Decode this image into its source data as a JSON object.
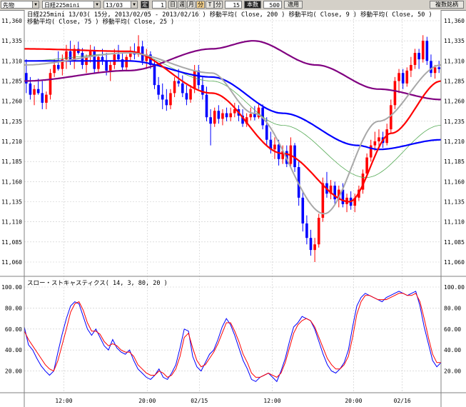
{
  "toolbar": {
    "product": "先物",
    "symbol": "日経225mini",
    "contract": "13/03",
    "fix_label": "定",
    "count_value": "1",
    "period_buttons": [
      "日",
      "週",
      "月",
      "分",
      "T"
    ],
    "active_period": "分",
    "unit_label": "分",
    "minutes_value": "15",
    "bars_label": "本数",
    "bars_value": "500",
    "apply_label": "適用",
    "compare_label": "複数銘柄"
  },
  "chart_data": [
    {
      "type": "candlestick",
      "info_line1": "日経225mini 13/03( 15分, 2013/02/05 - 2013/02/16 )   移動平均( Close, 200 )   移動平均( Close, 9 )   移動平均( Close, 50 )",
      "info_line2": "移動平均( Close, 75 )   移動平均( Close, 25 )",
      "ylim": [
        11060,
        11360
      ],
      "y_ticks": [
        11360,
        11335,
        11310,
        11285,
        11260,
        11235,
        11210,
        11185,
        11160,
        11135,
        11110,
        11085,
        11060
      ],
      "y_tick_labels": [
        "11,360",
        "11,335",
        "11,310",
        "11,285",
        "11,260",
        "11,235",
        "11,210",
        "11,185",
        "11,160",
        "11,135",
        "11,110",
        "11,085",
        "11,060"
      ],
      "colors": {
        "up": "#ff0000",
        "down": "#0000ff",
        "ma200": "#800080",
        "ma9": "#a8a8a8",
        "ma50": "#0000ff",
        "ma75": "#55aa55",
        "ma25": "#ff0000"
      },
      "candles": [
        [
          11295,
          11312,
          11270,
          11282
        ],
        [
          11282,
          11290,
          11262,
          11268
        ],
        [
          11268,
          11280,
          11255,
          11275
        ],
        [
          11275,
          11288,
          11268,
          11270
        ],
        [
          11270,
          11285,
          11250,
          11258
        ],
        [
          11258,
          11272,
          11250,
          11268
        ],
        [
          11268,
          11300,
          11262,
          11295
        ],
        [
          11295,
          11312,
          11290,
          11305
        ],
        [
          11305,
          11322,
          11298,
          11300
        ],
        [
          11300,
          11318,
          11292,
          11312
        ],
        [
          11312,
          11330,
          11300,
          11322
        ],
        [
          11322,
          11335,
          11305,
          11310
        ],
        [
          11310,
          11330,
          11300,
          11325
        ],
        [
          11325,
          11334,
          11318,
          11320
        ],
        [
          11320,
          11326,
          11300,
          11305
        ],
        [
          11305,
          11318,
          11295,
          11315
        ],
        [
          11315,
          11330,
          11308,
          11322
        ],
        [
          11322,
          11328,
          11295,
          11300
        ],
        [
          11300,
          11318,
          11295,
          11315
        ],
        [
          11315,
          11325,
          11305,
          11310
        ],
        [
          11310,
          11320,
          11292,
          11298
        ],
        [
          11298,
          11310,
          11285,
          11305
        ],
        [
          11305,
          11325,
          11300,
          11318
        ],
        [
          11318,
          11330,
          11310,
          11312
        ],
        [
          11312,
          11320,
          11298,
          11302
        ],
        [
          11302,
          11318,
          11298,
          11315
        ],
        [
          11315,
          11328,
          11310,
          11320
        ],
        [
          11320,
          11332,
          11312,
          11318
        ],
        [
          11318,
          11342,
          11315,
          11328
        ],
        [
          11328,
          11335,
          11305,
          11310
        ],
        [
          11310,
          11325,
          11300,
          11318
        ],
        [
          11318,
          11322,
          11300,
          11305
        ],
        [
          11305,
          11312,
          11275,
          11280
        ],
        [
          11280,
          11290,
          11262,
          11268
        ],
        [
          11268,
          11282,
          11250,
          11262
        ],
        [
          11262,
          11275,
          11248,
          11255
        ],
        [
          11255,
          11275,
          11250,
          11270
        ],
        [
          11270,
          11290,
          11265,
          11285
        ],
        [
          11285,
          11300,
          11278,
          11282
        ],
        [
          11282,
          11292,
          11265,
          11270
        ],
        [
          11270,
          11280,
          11255,
          11262
        ],
        [
          11262,
          11280,
          11258,
          11275
        ],
        [
          11275,
          11305,
          11270,
          11298
        ],
        [
          11298,
          11305,
          11275,
          11280
        ],
        [
          11280,
          11290,
          11262,
          11268
        ],
        [
          11268,
          11278,
          11235,
          11240
        ],
        [
          11240,
          11250,
          11205,
          11232
        ],
        [
          11232,
          11252,
          11228,
          11248
        ],
        [
          11248,
          11255,
          11232,
          11238
        ],
        [
          11238,
          11250,
          11230,
          11245
        ],
        [
          11245,
          11252,
          11235,
          11240
        ],
        [
          11240,
          11252,
          11235,
          11245
        ],
        [
          11245,
          11258,
          11240,
          11250
        ],
        [
          11250,
          11255,
          11235,
          11242
        ],
        [
          11242,
          11250,
          11228,
          11232
        ],
        [
          11232,
          11245,
          11228,
          11240
        ],
        [
          11240,
          11252,
          11236,
          11244
        ],
        [
          11244,
          11254,
          11236,
          11240
        ],
        [
          11240,
          11256,
          11238,
          11252
        ],
        [
          11252,
          11256,
          11225,
          11230
        ],
        [
          11230,
          11240,
          11205,
          11212
        ],
        [
          11212,
          11222,
          11195,
          11200
        ],
        [
          11200,
          11215,
          11188,
          11206
        ],
        [
          11206,
          11212,
          11180,
          11188
        ],
        [
          11188,
          11205,
          11182,
          11198
        ],
        [
          11198,
          11205,
          11178,
          11182
        ],
        [
          11182,
          11215,
          11178,
          11205
        ],
        [
          11205,
          11208,
          11172,
          11178
        ],
        [
          11178,
          11185,
          11130,
          11140
        ],
        [
          11140,
          11148,
          11098,
          11108
        ],
        [
          11108,
          11118,
          11082,
          11090
        ],
        [
          11090,
          11100,
          11068,
          11075
        ],
        [
          11075,
          11090,
          11060,
          11082
        ],
        [
          11082,
          11120,
          11078,
          11115
        ],
        [
          11115,
          11165,
          11110,
          11158
        ],
        [
          11158,
          11172,
          11140,
          11145
        ],
        [
          11145,
          11162,
          11138,
          11155
        ],
        [
          11155,
          11160,
          11132,
          11138
        ],
        [
          11138,
          11155,
          11128,
          11150
        ],
        [
          11150,
          11158,
          11128,
          11132
        ],
        [
          11132,
          11145,
          11122,
          11140
        ],
        [
          11140,
          11148,
          11125,
          11130
        ],
        [
          11130,
          11145,
          11122,
          11140
        ],
        [
          11140,
          11155,
          11136,
          11150
        ],
        [
          11150,
          11175,
          11145,
          11170
        ],
        [
          11170,
          11195,
          11165,
          11190
        ],
        [
          11190,
          11212,
          11185,
          11205
        ],
        [
          11205,
          11222,
          11198,
          11210
        ],
        [
          11210,
          11225,
          11200,
          11215
        ],
        [
          11215,
          11222,
          11202,
          11208
        ],
        [
          11208,
          11232,
          11205,
          11225
        ],
        [
          11225,
          11262,
          11220,
          11255
        ],
        [
          11255,
          11290,
          11250,
          11285
        ],
        [
          11285,
          11300,
          11270,
          11295
        ],
        [
          11295,
          11300,
          11275,
          11282
        ],
        [
          11282,
          11302,
          11278,
          11298
        ],
        [
          11298,
          11315,
          11290,
          11305
        ],
        [
          11305,
          11325,
          11300,
          11320
        ],
        [
          11320,
          11325,
          11300,
          11312
        ],
        [
          11312,
          11342,
          11308,
          11335
        ],
        [
          11335,
          11340,
          11305,
          11310
        ],
        [
          11310,
          11318,
          11290,
          11295
        ],
        [
          11295,
          11305,
          11288,
          11302
        ],
        [
          11302,
          11310,
          11295,
          11300
        ]
      ],
      "ma_levels": {
        "ma200": [
          [
            0,
            11285
          ],
          [
            0.25,
            11298
          ],
          [
            0.45,
            11325
          ],
          [
            0.55,
            11335
          ],
          [
            0.7,
            11305
          ],
          [
            0.85,
            11275
          ],
          [
            1,
            11262
          ]
        ],
        "ma9": [
          [
            0,
            11305
          ],
          [
            0.25,
            11320
          ],
          [
            0.45,
            11295
          ],
          [
            0.55,
            11245
          ],
          [
            0.72,
            11120
          ],
          [
            0.85,
            11235
          ],
          [
            1,
            11305
          ]
        ],
        "ma50": [
          [
            0,
            11310
          ],
          [
            0.25,
            11310
          ],
          [
            0.45,
            11290
          ],
          [
            0.62,
            11245
          ],
          [
            0.8,
            11205
          ],
          [
            0.85,
            11200
          ],
          [
            1,
            11212
          ]
        ],
        "ma75": [
          [
            0,
            11310
          ],
          [
            0.25,
            11320
          ],
          [
            0.45,
            11285
          ],
          [
            0.62,
            11230
          ],
          [
            0.82,
            11165
          ],
          [
            1,
            11230
          ]
        ],
        "ma25": [
          [
            0,
            11325
          ],
          [
            0.25,
            11322
          ],
          [
            0.45,
            11270
          ],
          [
            0.62,
            11195
          ],
          [
            0.78,
            11135
          ],
          [
            0.88,
            11220
          ],
          [
            1,
            11285
          ]
        ]
      }
    },
    {
      "type": "line",
      "info_line": "スロー・ストキャスティクス( 14, 3, 80, 20 )",
      "ylim": [
        0,
        100
      ],
      "y_ticks": [
        100,
        80,
        60,
        40,
        20
      ],
      "y_tick_labels": [
        "100.00",
        "80.00",
        "60.00",
        "40.00",
        "20.00"
      ],
      "series": [
        {
          "color": "#0000ff",
          "values": [
            62,
            45,
            40,
            32,
            25,
            20,
            16,
            20,
            38,
            55,
            70,
            82,
            86,
            84,
            72,
            60,
            54,
            60,
            52,
            44,
            40,
            50,
            42,
            38,
            36,
            40,
            30,
            22,
            18,
            14,
            12,
            16,
            22,
            14,
            12,
            18,
            26,
            42,
            60,
            58,
            34,
            24,
            20,
            28,
            36,
            40,
            50,
            62,
            70,
            64,
            54,
            42,
            30,
            22,
            12,
            10,
            14,
            16,
            18,
            14,
            10,
            20,
            32,
            48,
            62,
            66,
            72,
            70,
            68,
            60,
            48,
            36,
            26,
            20,
            18,
            22,
            28,
            40,
            62,
            82,
            90,
            94,
            92,
            90,
            88,
            86,
            90,
            92,
            94,
            96,
            94,
            92,
            94,
            96,
            82,
            62,
            46,
            30,
            24,
            28
          ]
        },
        {
          "color": "#ff0000",
          "values": [
            58,
            50,
            44,
            38,
            32,
            26,
            22,
            20,
            30,
            45,
            60,
            76,
            84,
            86,
            78,
            66,
            58,
            58,
            55,
            48,
            44,
            46,
            44,
            40,
            38,
            38,
            34,
            26,
            22,
            18,
            16,
            16,
            20,
            18,
            14,
            16,
            22,
            34,
            52,
            56,
            42,
            30,
            24,
            26,
            32,
            38,
            46,
            56,
            66,
            66,
            58,
            48,
            36,
            28,
            18,
            14,
            14,
            16,
            18,
            16,
            14,
            18,
            28,
            42,
            56,
            64,
            68,
            70,
            68,
            62,
            52,
            42,
            32,
            26,
            22,
            22,
            26,
            34,
            52,
            74,
            86,
            92,
            92,
            90,
            88,
            88,
            88,
            90,
            92,
            94,
            94,
            92,
            92,
            94,
            86,
            70,
            52,
            36,
            28,
            28
          ]
        }
      ]
    }
  ],
  "x_axis": {
    "labels": [
      "12:00",
      "20:00",
      "02/15",
      "12:00",
      "20:00",
      "02/16"
    ],
    "positions": [
      0.095,
      0.295,
      0.42,
      0.595,
      0.79,
      0.907
    ]
  }
}
